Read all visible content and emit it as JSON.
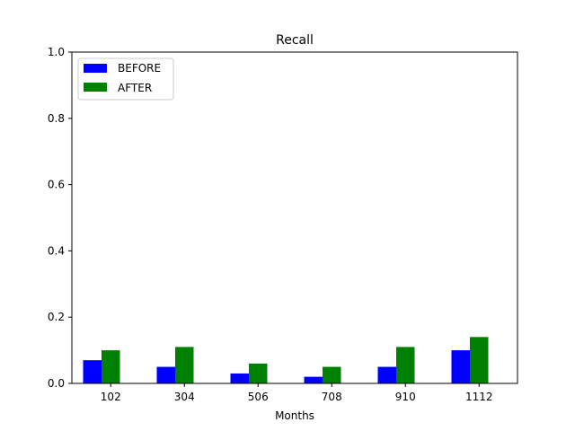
{
  "chart_data": {
    "type": "bar",
    "title": "Recall",
    "xlabel": "Months",
    "ylabel": "",
    "categories": [
      "102",
      "304",
      "506",
      "708",
      "910",
      "1112"
    ],
    "series": [
      {
        "name": "BEFORE",
        "color": "#0000ff",
        "values": [
          0.07,
          0.05,
          0.03,
          0.02,
          0.05,
          0.1
        ]
      },
      {
        "name": "AFTER",
        "color": "#008000",
        "values": [
          0.1,
          0.11,
          0.06,
          0.05,
          0.11,
          0.14
        ]
      }
    ],
    "ylim": [
      0,
      1.0
    ],
    "yticks": [
      "0.0",
      "0.2",
      "0.4",
      "0.6",
      "0.8",
      "1.0"
    ],
    "grid": false,
    "legend_position": "top-left"
  }
}
